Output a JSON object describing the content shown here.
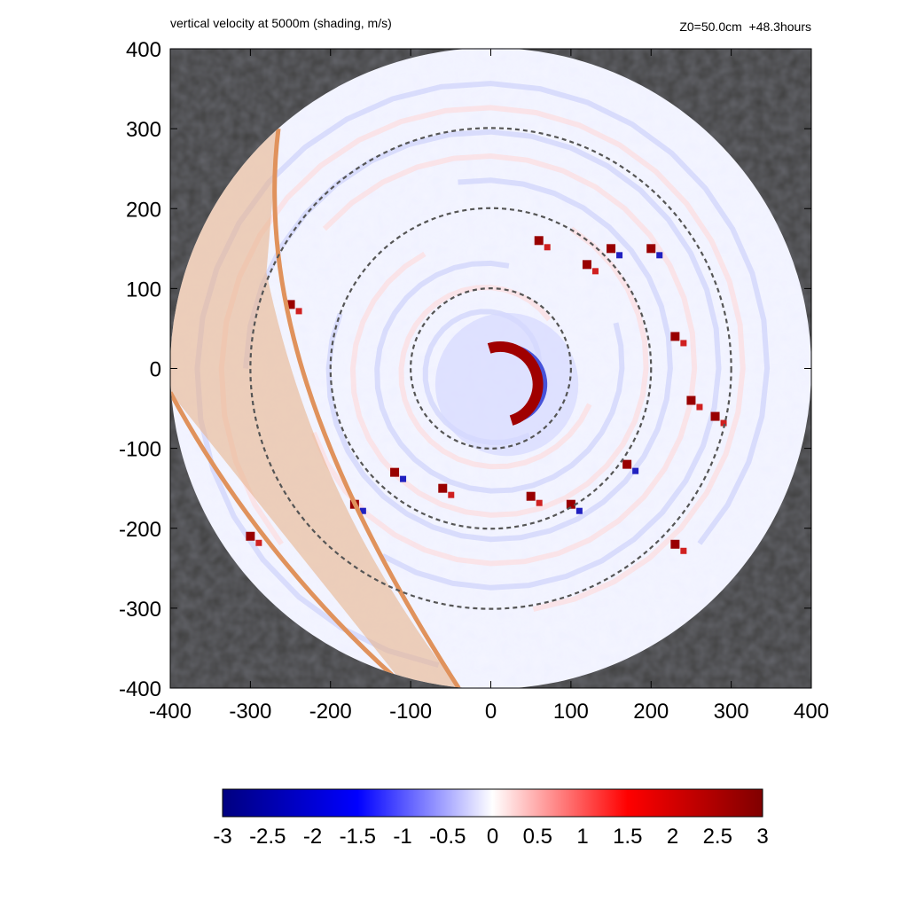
{
  "chart_data": {
    "type": "heatmap",
    "title": "vertical velocity at 5000m (shading, m/s)",
    "subtitle": "Z0=50.0cm  +48.3hours",
    "xlabel": "",
    "ylabel": "",
    "xlim": [
      -400,
      400
    ],
    "ylim": [
      -400,
      400
    ],
    "x_ticks": [
      "-400",
      "-300",
      "-200",
      "-100",
      "0",
      "100",
      "200",
      "300",
      "400"
    ],
    "y_ticks": [
      "400",
      "300",
      "200",
      "100",
      "0",
      "-100",
      "-200",
      "-300",
      "-400"
    ],
    "domain_radius": 400,
    "dashed_circle_radii": [
      100,
      200,
      300
    ],
    "colorbar": {
      "min": -3,
      "max": 3,
      "ticks": [
        "-3",
        "-2.5",
        "-2",
        "-1.5",
        "-1",
        "-0.5",
        "0",
        "0.5",
        "1",
        "1.5",
        "2",
        "2.5",
        "3"
      ],
      "colors": [
        "#000080",
        "#0000ff",
        "#ffffff",
        "#ff0000",
        "#800000"
      ]
    },
    "background_color": "#404040",
    "shaded_band_color": "#e8b48c",
    "band_edge_color": "#e0925c",
    "features": {
      "eyewall_updraft": {
        "center": [
          20,
          -20
        ],
        "radius": 45,
        "max_value": 3
      },
      "rainband_cells": [
        [
          150,
          150
        ],
        [
          230,
          40
        ],
        [
          250,
          -40
        ],
        [
          -120,
          -130
        ],
        [
          -60,
          -150
        ],
        [
          50,
          -160
        ],
        [
          100,
          -170
        ],
        [
          280,
          -60
        ],
        [
          230,
          -220
        ],
        [
          -170,
          -170
        ],
        [
          -300,
          -210
        ],
        [
          -250,
          80
        ],
        [
          170,
          -120
        ],
        [
          120,
          130
        ],
        [
          60,
          160
        ],
        [
          200,
          150
        ]
      ]
    }
  }
}
